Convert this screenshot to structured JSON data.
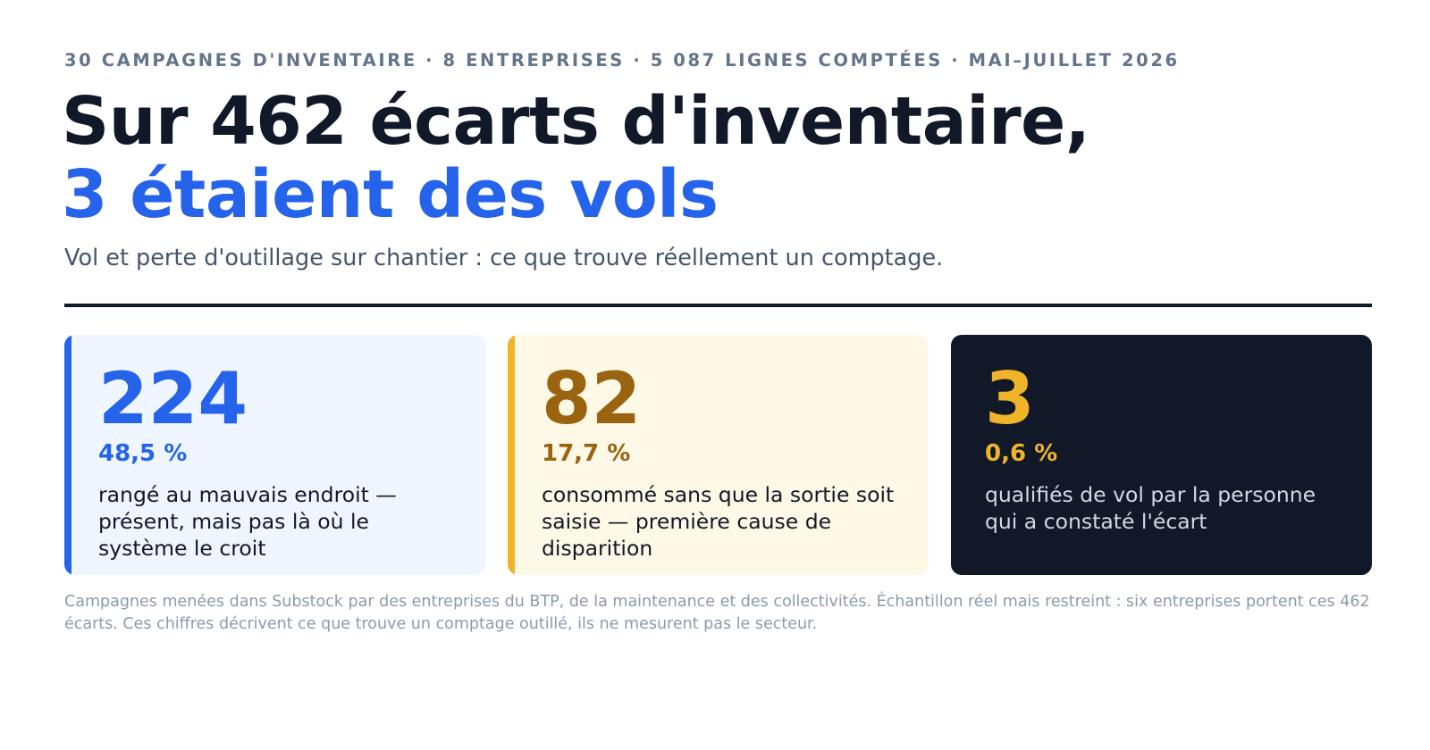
{
  "kicker": "30 CAMPAGNES D'INVENTAIRE · 8 ENTREPRISES · 5 087 LIGNES COMPTÉES · MAI–JUILLET 2026",
  "headline": {
    "line1": "Sur 462 écarts d'inventaire,",
    "line2": "3 étaient des vols"
  },
  "subtitle": "Vol et perte d'outillage sur chantier : ce que trouve réellement un comptage.",
  "cards": [
    {
      "value": "224",
      "percent": "48,5 %",
      "description": "rangé au mauvais endroit — présent, mais pas là où le système le croit",
      "accent_color": "#2563eb"
    },
    {
      "value": "82",
      "percent": "17,7 %",
      "description": "consommé sans que la sortie soit saisie — première cause de disparition",
      "accent_color": "#9a6310"
    },
    {
      "value": "3",
      "percent": "0,6 %",
      "description": "qualifiés de vol par la personne qui a constaté l'écart",
      "accent_color": "#f0b429"
    }
  ],
  "footnote": "Campagnes menées dans Substock par des entreprises du BTP, de la maintenance et des collectivités. Échantillon réel mais restreint : six entreprises portent ces 462 écarts. Ces chiffres décrivent ce que trouve un comptage outillé, ils ne mesurent pas le secteur.",
  "colors": {
    "title": "#111827",
    "highlight": "#2563eb",
    "muted": "#64748b"
  }
}
